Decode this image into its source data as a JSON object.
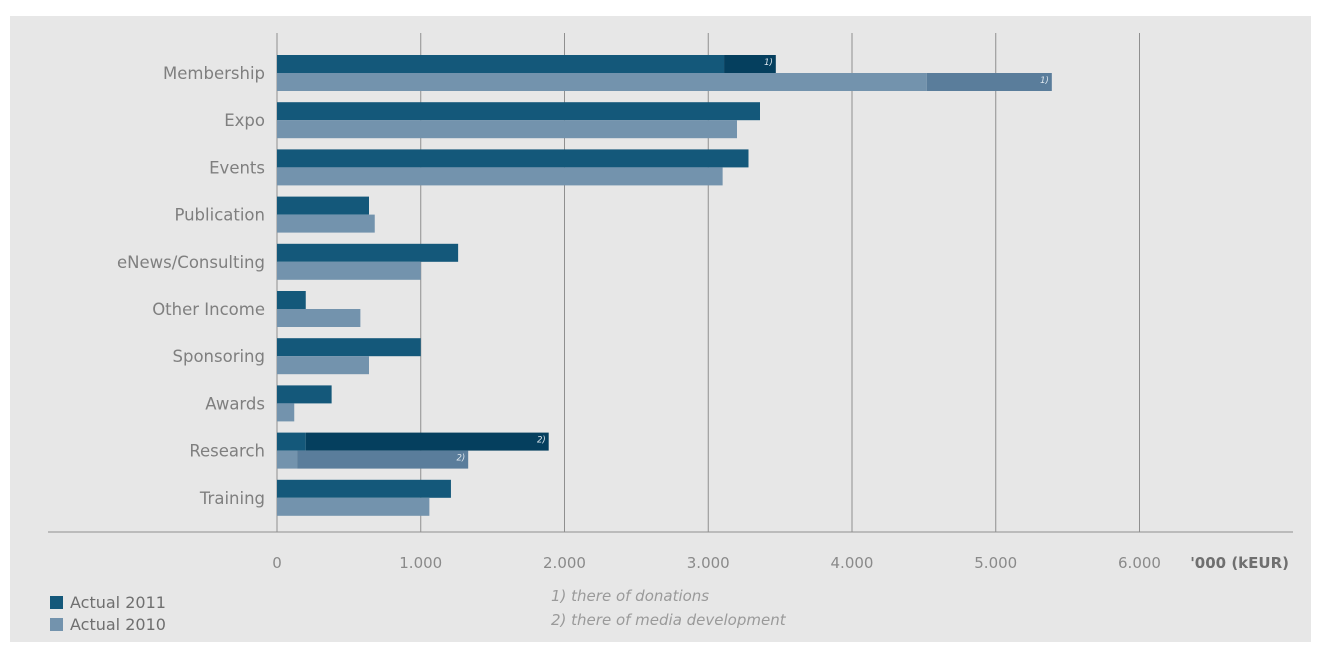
{
  "colors": {
    "series_2011": "#14587a",
    "series_2011_extra": "#053f5e",
    "series_2010": "#7393ad",
    "series_2010_extra": "#5a7d9b",
    "gridline": "#8f8f8f",
    "background": "#e7e7e7"
  },
  "legend": [
    {
      "label": "Actual 2011",
      "color": "#14587a"
    },
    {
      "label": "Actual 2010",
      "color": "#7393ad"
    }
  ],
  "footnotes": [
    "1) there of donations",
    "2) there of media development"
  ],
  "chart_data": {
    "type": "bar",
    "orientation": "horizontal",
    "stacked_segments": true,
    "xlabel": "'000 (kEUR)",
    "xlim": [
      0,
      7000
    ],
    "xticks": [
      0,
      1000,
      2000,
      3000,
      4000,
      5000,
      6000
    ],
    "xtick_labels": [
      "0",
      "1.000",
      "2.000",
      "3.000",
      "4.000",
      "5.000",
      "6.000"
    ],
    "grid": true,
    "legend_position": "bottom-left",
    "categories": [
      "Membership",
      "Expo",
      "Events",
      "Publication",
      "eNews/Consulting",
      "Other Income",
      "Sponsoring",
      "Awards",
      "Research",
      "Training"
    ],
    "series": [
      {
        "name": "Actual 2011",
        "values": [
          3470,
          3360,
          3280,
          640,
          1260,
          200,
          1000,
          380,
          1890,
          1210
        ],
        "breakdown": [
          {
            "category": "Membership",
            "base": 3110,
            "extra": 360,
            "marker": "1)"
          },
          {
            "category": "Research",
            "base": 200,
            "extra": 1690,
            "marker": "2)"
          }
        ]
      },
      {
        "name": "Actual 2010",
        "values": [
          5390,
          3200,
          3100,
          680,
          1000,
          580,
          640,
          120,
          1330,
          1060
        ],
        "breakdown": [
          {
            "category": "Membership",
            "base": 4520,
            "extra": 870,
            "marker": "1)"
          },
          {
            "category": "Research",
            "base": 140,
            "extra": 1190,
            "marker": "2)"
          }
        ]
      }
    ]
  }
}
